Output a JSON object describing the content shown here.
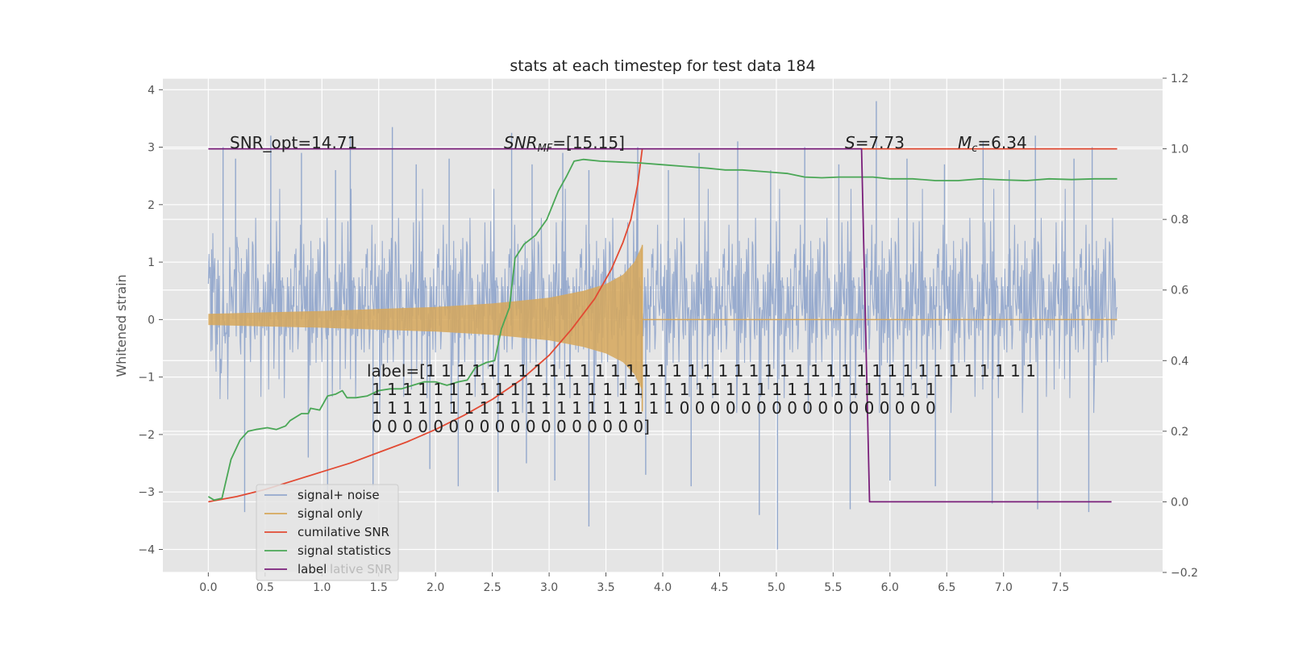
{
  "chart_data": {
    "type": "line",
    "title": "stats at each timestep for test data 184",
    "ylabel": "Whitened strain",
    "xlim": [
      -0.4,
      8.4
    ],
    "ylim_left": [
      -4.4,
      4.2
    ],
    "ylim_right": [
      -0.2,
      1.2
    ],
    "x_ticks": [
      "0.0",
      "0.5",
      "1.0",
      "1.5",
      "2.0",
      "2.5",
      "3.0",
      "3.5",
      "4.0",
      "4.5",
      "5.0",
      "5.5",
      "6.0",
      "6.5",
      "7.0",
      "7.5"
    ],
    "y_ticks_left": [
      "4",
      "3",
      "2",
      "1",
      "0",
      "−1",
      "−2",
      "−3",
      "−4"
    ],
    "y_ticks_right": [
      "1.2",
      "1.0",
      "0.8",
      "0.6",
      "0.4",
      "0.2",
      "0.0",
      "−0.2"
    ],
    "grid": true,
    "annotations": {
      "snr_opt": "SNR_opt=14.71",
      "snr_mf_label": "SNR",
      "snr_mf_sub": "MF",
      "snr_mf_value": "=[15.15]",
      "s_label": "S",
      "s_value": "=7.73",
      "mc_label": "M",
      "mc_sub": "c",
      "mc_value": "=6.34",
      "label_line1": "label=[1 1 1 1 1 1 1 1 1 1 1 1 1 1 1 1 1 1 1 1 1 1 1 1 1 1 1 1 1 1 1 1 1 1 1 1 1 1 1 1",
      "label_line2": "1 1 1 1 1 1 1 1 1 1 1 1 1 1 1 1 1 1 1 1 1 1 1 1 1 1 1 1 1 1 1 1 1 1 1 1 1",
      "label_line3": "1 1 1 1 1 1 1 1 1 1 1 1 1 1 1 1 1 1 1 1 0 0 0 0 0 0 0 0 0 0 0 0 0 0 0 0 0",
      "label_line4": "0 0 0 0 0 0 0 0 0 0 0 0 0 0 0 0 0 0]"
    },
    "legend": {
      "position": "lower-left",
      "entries": [
        "signal+ noise",
        "signal only",
        "cumilative SNR",
        "signal statistics",
        "label"
      ],
      "ghost_text": "lative SNR"
    },
    "series": [
      {
        "name": "signal+ noise",
        "axis": "left",
        "color": "#93a8cc",
        "description": "whitened noisy strain, dense fluctuations roughly within ±2.5",
        "x_range": [
          0.0,
          8.0
        ],
        "spikes_positive": [
          [
            0.13,
            3.0
          ],
          [
            0.24,
            2.8
          ],
          [
            0.55,
            3.2
          ],
          [
            0.82,
            2.9
          ],
          [
            1.12,
            2.6
          ],
          [
            1.25,
            3.2
          ],
          [
            1.62,
            3.35
          ],
          [
            1.83,
            2.7
          ],
          [
            2.12,
            2.8
          ],
          [
            2.67,
            3.25
          ],
          [
            2.85,
            2.7
          ],
          [
            3.12,
            2.9
          ],
          [
            3.35,
            2.6
          ],
          [
            3.78,
            3.0
          ],
          [
            4.05,
            2.6
          ],
          [
            4.32,
            2.9
          ],
          [
            4.66,
            3.1
          ],
          [
            4.95,
            2.6
          ],
          [
            5.25,
            3.0
          ],
          [
            5.55,
            2.7
          ],
          [
            5.88,
            3.8
          ],
          [
            6.15,
            2.8
          ],
          [
            6.48,
            2.7
          ],
          [
            6.82,
            3.1
          ],
          [
            7.05,
            2.6
          ],
          [
            7.28,
            3.2
          ],
          [
            7.62,
            2.8
          ],
          [
            7.78,
            3.0
          ]
        ],
        "spikes_negative": [
          [
            0.32,
            -3.35
          ],
          [
            0.88,
            -2.4
          ],
          [
            1.05,
            -3.0
          ],
          [
            1.45,
            -2.9
          ],
          [
            1.95,
            -2.6
          ],
          [
            2.2,
            -2.9
          ],
          [
            2.55,
            -3.0
          ],
          [
            2.8,
            -2.5
          ],
          [
            3.05,
            -2.8
          ],
          [
            3.35,
            -3.6
          ],
          [
            3.85,
            -2.7
          ],
          [
            4.25,
            -2.9
          ],
          [
            4.85,
            -3.4
          ],
          [
            5.01,
            -4.0
          ],
          [
            5.65,
            -3.3
          ],
          [
            6.0,
            -2.8
          ],
          [
            6.4,
            -2.9
          ],
          [
            6.9,
            -3.2
          ],
          [
            7.3,
            -3.3
          ],
          [
            7.75,
            -3.35
          ]
        ]
      },
      {
        "name": "signal only",
        "axis": "left",
        "color": "#d6a75a",
        "description": "chirp with growing amplitude ending near t=3.82",
        "envelope": [
          [
            0.0,
            0.1
          ],
          [
            1.0,
            0.15
          ],
          [
            2.0,
            0.22
          ],
          [
            2.5,
            0.28
          ],
          [
            3.0,
            0.38
          ],
          [
            3.3,
            0.5
          ],
          [
            3.5,
            0.62
          ],
          [
            3.65,
            0.78
          ],
          [
            3.75,
            1.0
          ],
          [
            3.82,
            1.3
          ]
        ],
        "merger_x": 3.82
      },
      {
        "name": "cumilative SNR",
        "axis": "right",
        "color": "#e24a33",
        "points": [
          [
            0.0,
            0.0
          ],
          [
            0.25,
            0.015
          ],
          [
            0.5,
            0.035
          ],
          [
            0.75,
            0.06
          ],
          [
            1.0,
            0.085
          ],
          [
            1.25,
            0.11
          ],
          [
            1.5,
            0.14
          ],
          [
            1.75,
            0.17
          ],
          [
            2.0,
            0.205
          ],
          [
            2.25,
            0.245
          ],
          [
            2.5,
            0.29
          ],
          [
            2.75,
            0.345
          ],
          [
            3.0,
            0.415
          ],
          [
            3.2,
            0.49
          ],
          [
            3.4,
            0.575
          ],
          [
            3.55,
            0.66
          ],
          [
            3.65,
            0.735
          ],
          [
            3.72,
            0.8
          ],
          [
            3.78,
            0.9
          ],
          [
            3.82,
            1.0
          ]
        ]
      },
      {
        "name": "signal statistics",
        "axis": "right",
        "color": "#4aa756",
        "points": [
          [
            0.0,
            0.015
          ],
          [
            0.05,
            0.005
          ],
          [
            0.12,
            0.01
          ],
          [
            0.2,
            0.12
          ],
          [
            0.28,
            0.175
          ],
          [
            0.35,
            0.2
          ],
          [
            0.42,
            0.205
          ],
          [
            0.52,
            0.21
          ],
          [
            0.6,
            0.205
          ],
          [
            0.68,
            0.215
          ],
          [
            0.72,
            0.23
          ],
          [
            0.82,
            0.25
          ],
          [
            0.88,
            0.25
          ],
          [
            0.9,
            0.265
          ],
          [
            0.98,
            0.26
          ],
          [
            1.05,
            0.3
          ],
          [
            1.12,
            0.305
          ],
          [
            1.18,
            0.315
          ],
          [
            1.22,
            0.295
          ],
          [
            1.3,
            0.295
          ],
          [
            1.4,
            0.3
          ],
          [
            1.5,
            0.315
          ],
          [
            1.6,
            0.32
          ],
          [
            1.7,
            0.32
          ],
          [
            1.8,
            0.33
          ],
          [
            1.9,
            0.34
          ],
          [
            2.0,
            0.34
          ],
          [
            2.1,
            0.33
          ],
          [
            2.2,
            0.34
          ],
          [
            2.28,
            0.345
          ],
          [
            2.35,
            0.38
          ],
          [
            2.45,
            0.395
          ],
          [
            2.52,
            0.4
          ],
          [
            2.58,
            0.49
          ],
          [
            2.65,
            0.55
          ],
          [
            2.7,
            0.69
          ],
          [
            2.78,
            0.73
          ],
          [
            2.88,
            0.755
          ],
          [
            2.98,
            0.8
          ],
          [
            3.08,
            0.88
          ],
          [
            3.15,
            0.92
          ],
          [
            3.22,
            0.965
          ],
          [
            3.3,
            0.97
          ],
          [
            3.45,
            0.965
          ],
          [
            3.6,
            0.963
          ],
          [
            3.8,
            0.96
          ],
          [
            4.0,
            0.955
          ],
          [
            4.2,
            0.95
          ],
          [
            4.4,
            0.945
          ],
          [
            4.55,
            0.94
          ],
          [
            4.7,
            0.94
          ],
          [
            4.9,
            0.935
          ],
          [
            5.1,
            0.93
          ],
          [
            5.25,
            0.92
          ],
          [
            5.4,
            0.918
          ],
          [
            5.55,
            0.92
          ],
          [
            5.7,
            0.92
          ],
          [
            5.85,
            0.92
          ],
          [
            6.0,
            0.915
          ],
          [
            6.2,
            0.915
          ],
          [
            6.4,
            0.91
          ],
          [
            6.6,
            0.91
          ],
          [
            6.8,
            0.915
          ],
          [
            7.0,
            0.912
          ],
          [
            7.2,
            0.91
          ],
          [
            7.4,
            0.915
          ],
          [
            7.6,
            0.913
          ],
          [
            7.8,
            0.915
          ],
          [
            8.0,
            0.915
          ]
        ]
      },
      {
        "name": "label",
        "axis": "right",
        "color": "#7a1f7a",
        "points": [
          [
            0.0,
            1.0
          ],
          [
            5.75,
            1.0
          ],
          [
            5.82,
            0.0
          ],
          [
            7.95,
            0.0
          ]
        ]
      },
      {
        "name": "",
        "axis": "right",
        "color": "#e24a33",
        "description": "red horizontal reference line at 1.0",
        "points": [
          [
            5.6,
            1.0
          ],
          [
            8.0,
            1.0
          ]
        ]
      }
    ]
  }
}
